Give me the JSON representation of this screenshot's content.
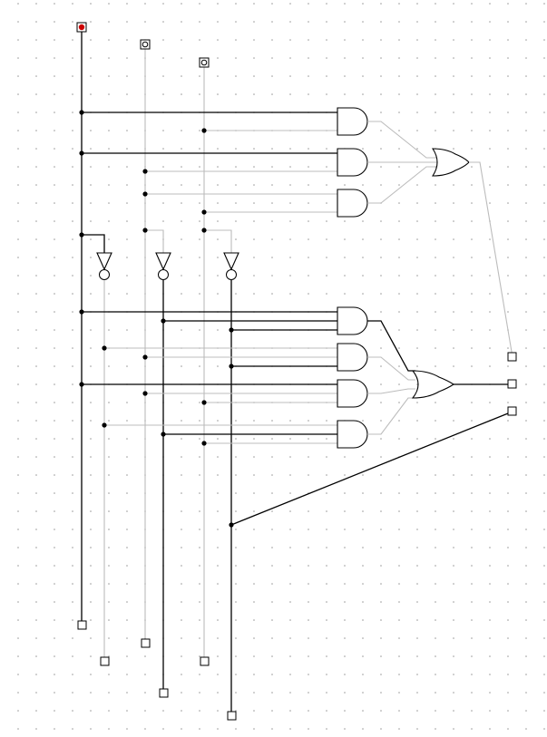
{
  "canvas": {
    "background": "#ffffff",
    "grid_dot_color": "#9a9a9a",
    "wire_high_color": "#000000",
    "wire_low_color": "#bcbcbc",
    "input_on_color": "#cc0000"
  },
  "inputs": [
    {
      "name": "input-a",
      "state": 1
    },
    {
      "name": "input-b",
      "state": 0
    },
    {
      "name": "input-c",
      "state": 0
    }
  ],
  "gates": {
    "and_count": 7,
    "or_count": 2,
    "not_count": 3
  },
  "outputs": {
    "right_pins": 3,
    "bottom_pins": 6
  }
}
